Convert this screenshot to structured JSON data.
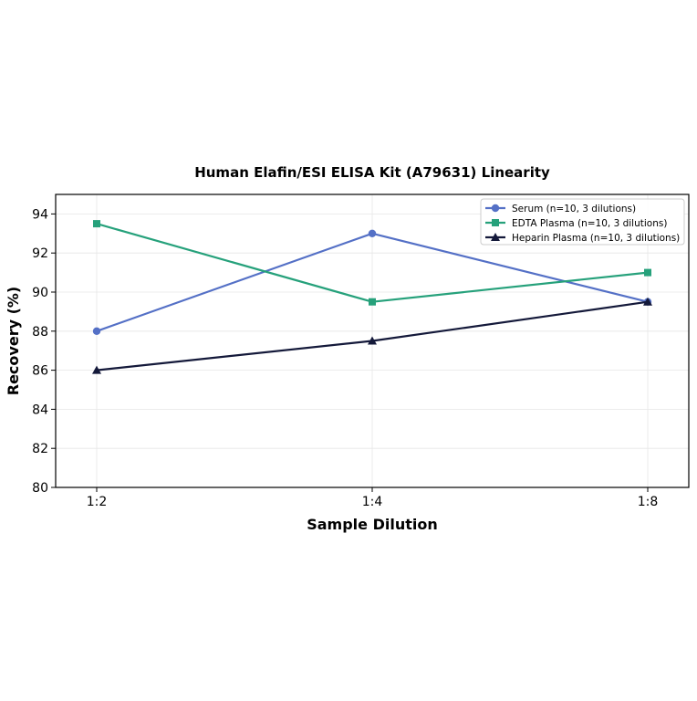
{
  "chart_data": {
    "type": "line",
    "title": "Human Elafin/ESI ELISA Kit (A79631) Linearity",
    "xlabel": "Sample Dilution",
    "ylabel": "Recovery (%)",
    "categories": [
      "1:2",
      "1:4",
      "1:8"
    ],
    "ylim": [
      80,
      95
    ],
    "yticks": [
      80,
      82,
      84,
      86,
      88,
      90,
      92,
      94
    ],
    "grid": true,
    "legend_position": "top-right",
    "series": [
      {
        "name": "Serum (n=10, 3 dilutions)",
        "values": [
          88,
          93,
          89.5
        ],
        "color": "#5470c6",
        "marker": "circle"
      },
      {
        "name": "EDTA Plasma (n=10, 3 dilutions)",
        "values": [
          93.5,
          89.5,
          91
        ],
        "color": "#26a17b",
        "marker": "square"
      },
      {
        "name": "Heparin Plasma (n=10, 3 dilutions)",
        "values": [
          86,
          87.5,
          89.5
        ],
        "color": "#14193a",
        "marker": "triangle"
      }
    ]
  }
}
